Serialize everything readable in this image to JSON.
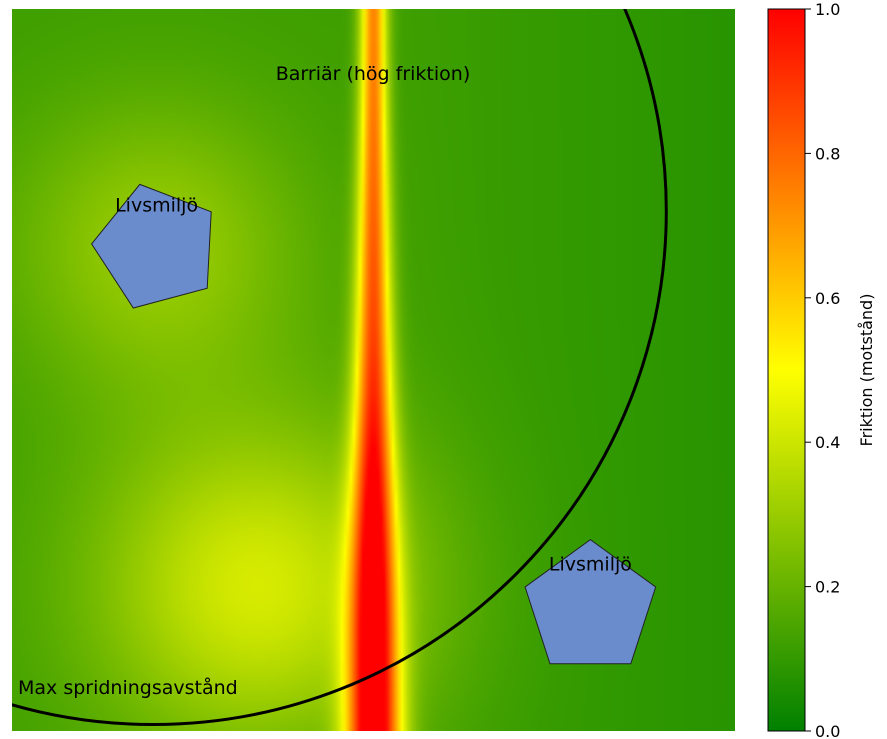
{
  "chart_data": {
    "type": "heatmap",
    "title": "",
    "xlabel": "",
    "ylabel": "",
    "colormap": [
      {
        "stop": 0.0,
        "color": "#008000"
      },
      {
        "stop": 0.5,
        "color": "#ffff00"
      },
      {
        "stop": 1.0,
        "color": "#ff0000"
      }
    ],
    "field": {
      "extent_x": [
        0,
        100
      ],
      "extent_y": [
        0,
        100
      ],
      "base_friction": 0.12,
      "barrier_x": 50,
      "barrier_peak_top": 0.62,
      "barrier_peak_bottom": 1.0,
      "barrier_halfwidth_top": 1.3,
      "barrier_halfwidth_bottom": 2.6,
      "hotspots": [
        {
          "x": 20,
          "y": 33,
          "strength": 0.18,
          "radius": 14
        },
        {
          "x": 34,
          "y": 80,
          "strength": 0.3,
          "radius": 16
        }
      ]
    },
    "habitats": [
      {
        "label": "Livsmiljö",
        "center": [
          20,
          33
        ],
        "radius": 9.0,
        "rotation_deg": -15,
        "fill": "#6b8ccc"
      },
      {
        "label": "Livsmiljö",
        "center": [
          80,
          83
        ],
        "radius": 9.5,
        "rotation_deg": 0,
        "fill": "#6b8ccc"
      }
    ],
    "dispersal_circle": {
      "center": [
        19.5,
        28
      ],
      "radius": 71
    },
    "annotations": {
      "barrier": "Barriär (hög friktion)",
      "max_distance": "Max spridningsavstånd"
    },
    "colorbar": {
      "label": "Friktion (motstånd)",
      "range": [
        0,
        1
      ],
      "ticks": [
        {
          "value": 0.0,
          "label": "0.0"
        },
        {
          "value": 0.2,
          "label": "0.2"
        },
        {
          "value": 0.4,
          "label": "0.4"
        },
        {
          "value": 0.6,
          "label": "0.6"
        },
        {
          "value": 0.8,
          "label": "0.8"
        },
        {
          "value": 1.0,
          "label": "1.0"
        }
      ]
    }
  }
}
